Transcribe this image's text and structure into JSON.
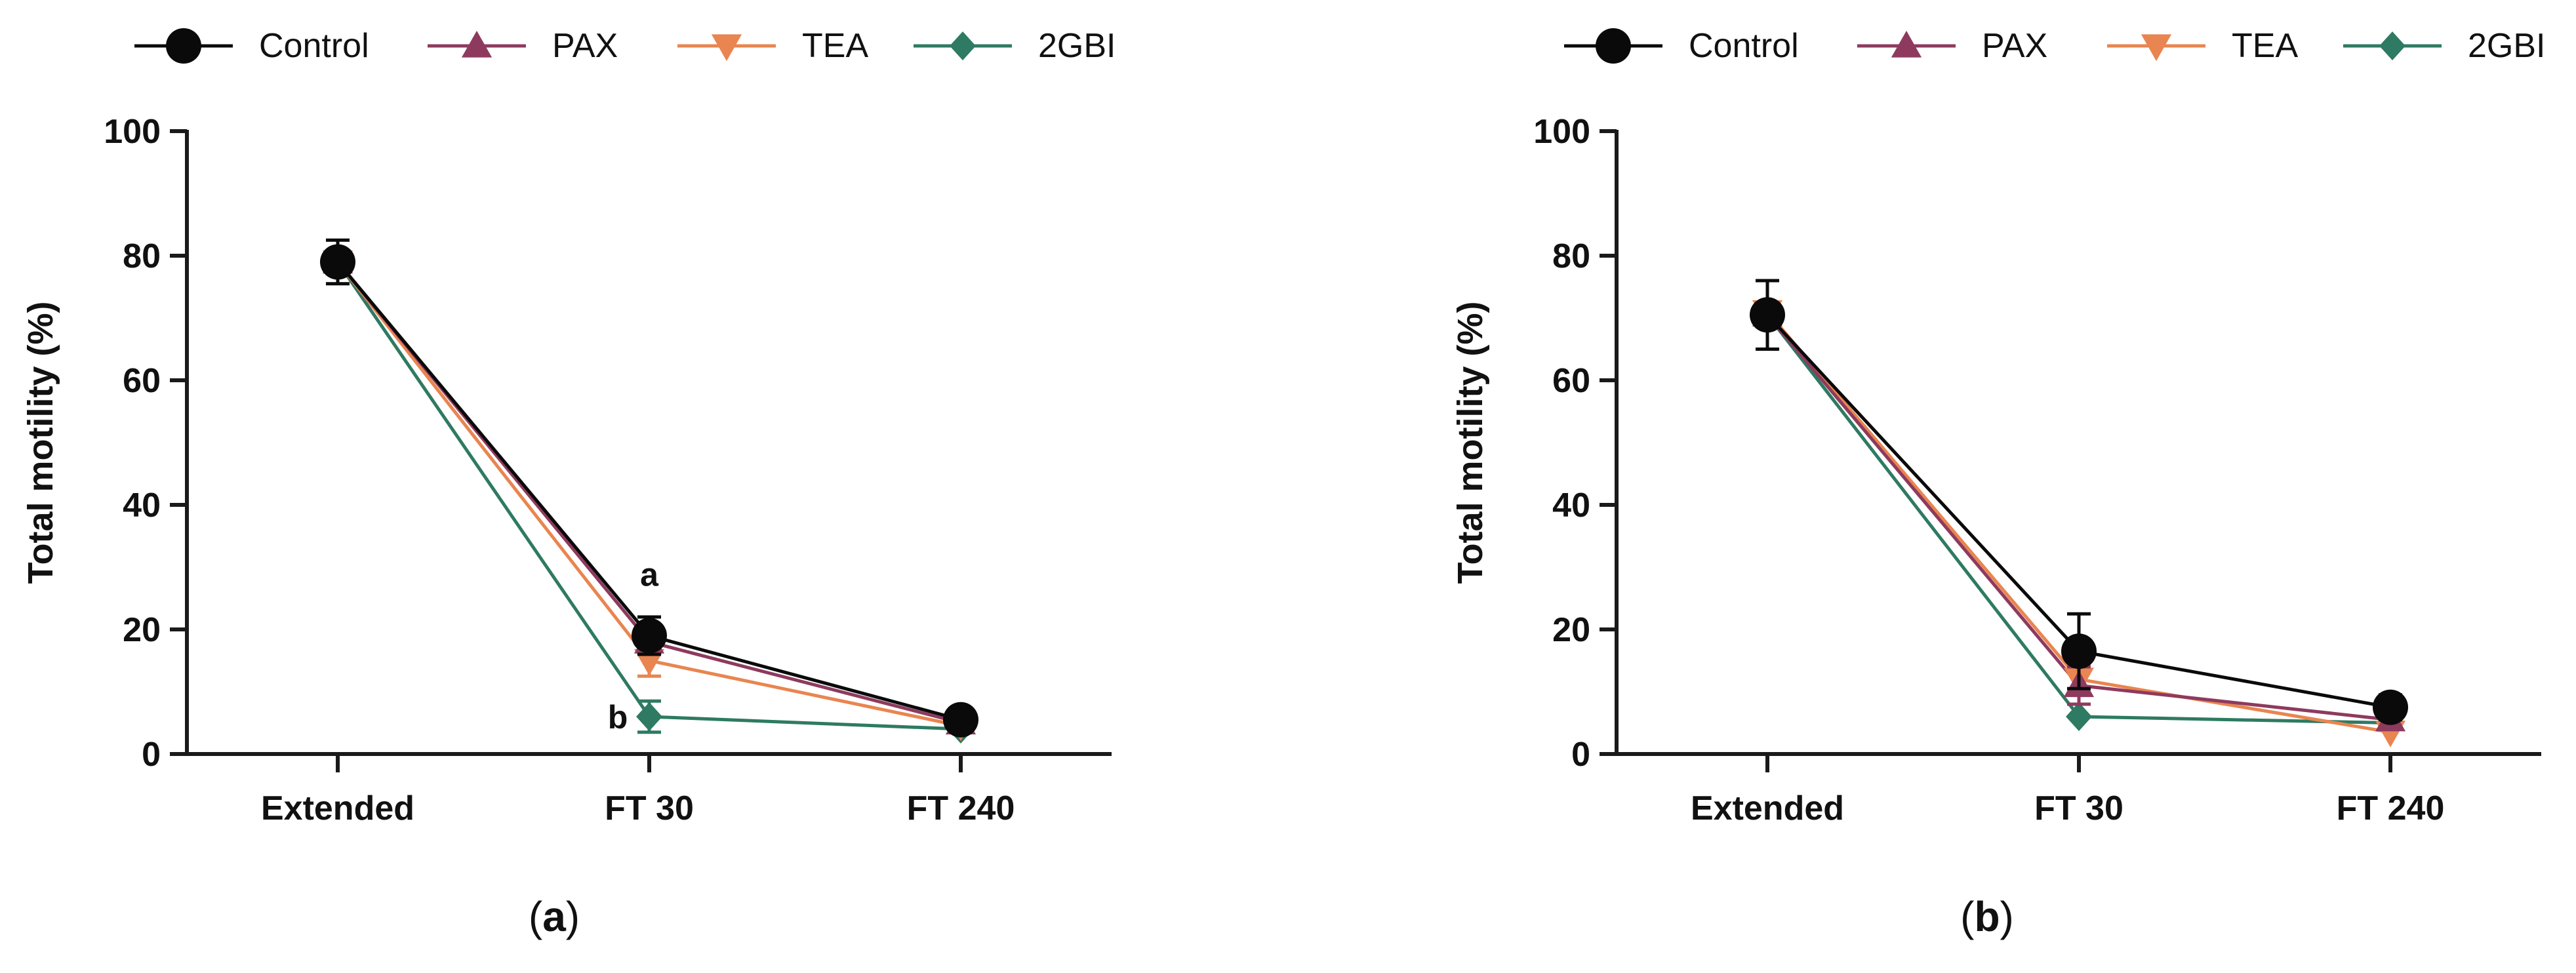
{
  "chart_data": [
    {
      "type": "line",
      "panel_label": "(a)",
      "panel_letter": "a",
      "ylabel": "Total motility (%)",
      "xlabel": "",
      "ylim": [
        0,
        100
      ],
      "yticks": [
        "0",
        "20",
        "40",
        "60",
        "80",
        "100"
      ],
      "categories": [
        "Extended",
        "FT 30",
        "FT 240"
      ],
      "legend_position": "top",
      "series": [
        {
          "name": "Control",
          "values": [
            79,
            19,
            5.5
          ],
          "errors": [
            3.5,
            3,
            1
          ]
        },
        {
          "name": "PAX",
          "values": [
            79,
            18,
            5
          ],
          "errors": [
            0,
            0,
            0
          ]
        },
        {
          "name": "TEA",
          "values": [
            79,
            15,
            4.5
          ],
          "errors": [
            0,
            2.5,
            0
          ]
        },
        {
          "name": "2GBI",
          "values": [
            79,
            6,
            4
          ],
          "errors": [
            0,
            2.5,
            0
          ]
        }
      ],
      "annotations": [
        {
          "text": "a",
          "category": "FT 30",
          "value": 27,
          "side": "above"
        },
        {
          "text": "b",
          "category": "FT 30",
          "value": 6,
          "side": "left"
        }
      ]
    },
    {
      "type": "line",
      "panel_label": "(b)",
      "panel_letter": "b",
      "ylabel": "Total motility (%)",
      "xlabel": "",
      "ylim": [
        0,
        100
      ],
      "yticks": [
        "0",
        "20",
        "40",
        "60",
        "80",
        "100"
      ],
      "categories": [
        "Extended",
        "FT 30",
        "FT 240"
      ],
      "legend_position": "top",
      "series": [
        {
          "name": "Control",
          "values": [
            70.5,
            16.5,
            7.5
          ],
          "errors": [
            5.5,
            6,
            2
          ]
        },
        {
          "name": "PAX",
          "values": [
            70.5,
            11,
            5.5
          ],
          "errors": [
            0,
            3,
            0
          ]
        },
        {
          "name": "TEA",
          "values": [
            71,
            12,
            3.5
          ],
          "errors": [
            0,
            2.5,
            0
          ]
        },
        {
          "name": "2GBI",
          "values": [
            70.5,
            6,
            5
          ],
          "errors": [
            0,
            0,
            0
          ]
        }
      ],
      "annotations": []
    }
  ],
  "series_style": {
    "Control": {
      "color": "#0a0a0a",
      "marker": "circle"
    },
    "PAX": {
      "color": "#8e3a5e",
      "marker": "triangle-up"
    },
    "TEA": {
      "color": "#e98550",
      "marker": "triangle-down"
    },
    "2GBI": {
      "color": "#2e7a62",
      "marker": "diamond"
    }
  },
  "axis_color": "#1a1a1a",
  "text_color": "#111111"
}
